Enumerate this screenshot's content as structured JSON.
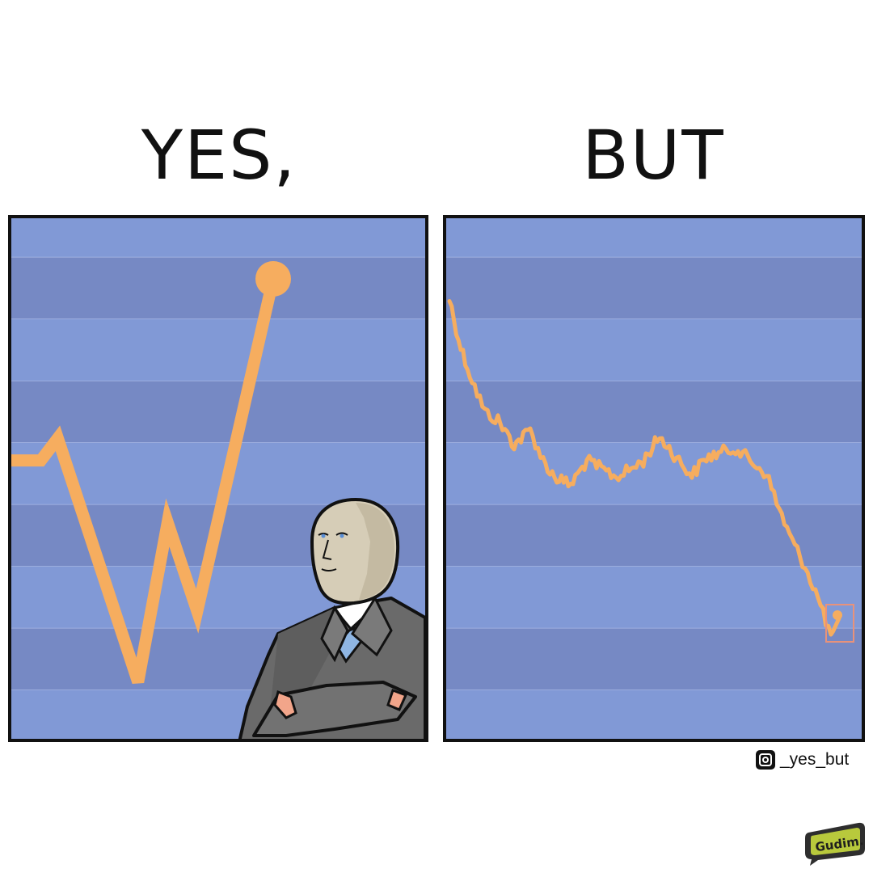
{
  "captions": {
    "left": "YES,",
    "right": "BUT"
  },
  "colors": {
    "background": "#7d95d2",
    "band_dark": "#7689c4",
    "band_light": "#8199d6",
    "gridline": "#a9b9e6",
    "line": "#f6ad5f",
    "suit": "#6a6a6a",
    "head": "#d6cdb7",
    "tie": "#8fb6e3"
  },
  "watermark": {
    "icon": "instagram-icon",
    "handle": "_yes_but"
  },
  "logo": {
    "text": "Gudim.",
    "icon": "speech-bubble-logo"
  },
  "left_chart": {
    "type": "line",
    "x": [
      0,
      7,
      11,
      30,
      37,
      44,
      62
    ],
    "y": [
      57,
      57,
      62,
      7,
      43,
      23,
      98
    ],
    "endpoint_marker": true
  },
  "right_chart": {
    "type": "line",
    "shape": "noisy downward trend",
    "endpoint_marker": true,
    "highlight_box": true
  },
  "figure": {
    "description_icon": "meme-man-businessman-icon"
  }
}
